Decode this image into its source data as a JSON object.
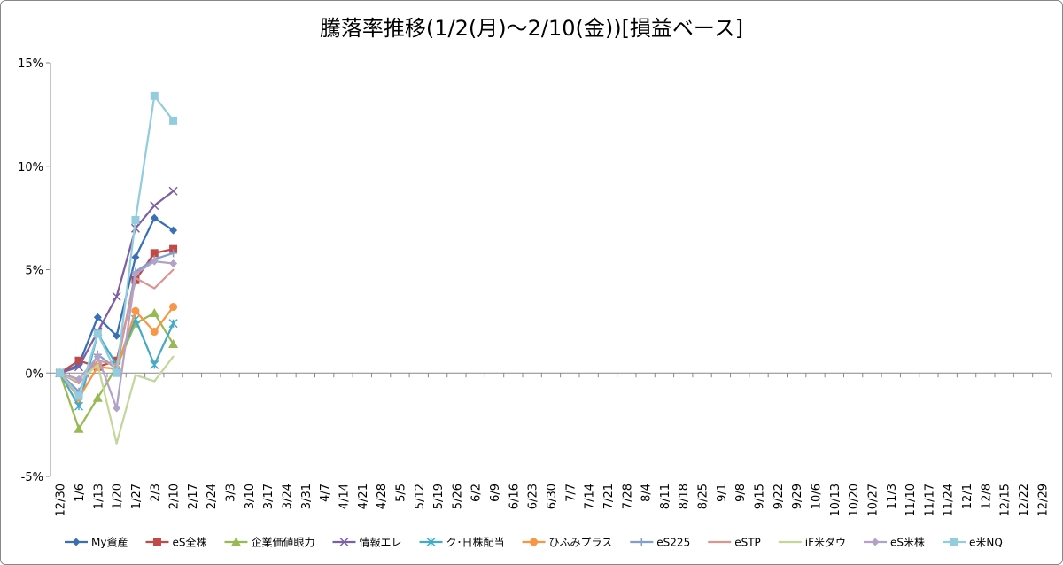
{
  "chart_data": {
    "type": "line",
    "title": "騰落率推移(1/2(月)～2/10(金))[損益ベース]",
    "categories": [
      "12/30",
      "1/6",
      "1/13",
      "1/20",
      "1/27",
      "2/3",
      "2/10",
      "2/17",
      "2/24",
      "3/3",
      "3/10",
      "3/17",
      "3/24",
      "3/31",
      "4/7",
      "4/14",
      "4/21",
      "4/28",
      "5/5",
      "5/12",
      "5/19",
      "5/26",
      "6/2",
      "6/9",
      "6/16",
      "6/23",
      "6/30",
      "7/7",
      "7/14",
      "7/21",
      "7/28",
      "8/4",
      "8/11",
      "8/18",
      "8/25",
      "9/1",
      "9/8",
      "9/15",
      "9/22",
      "9/29",
      "10/6",
      "10/13",
      "10/20",
      "10/27",
      "11/3",
      "11/10",
      "11/17",
      "11/24",
      "12/1",
      "12/8",
      "12/15",
      "12/22",
      "12/29"
    ],
    "ylim": [
      -5,
      15
    ],
    "yticks": [
      {
        "value": -5,
        "label": "-5%"
      },
      {
        "value": 0,
        "label": "0%"
      },
      {
        "value": 5,
        "label": "5%"
      },
      {
        "value": 10,
        "label": "10%"
      },
      {
        "value": 15,
        "label": "15%"
      }
    ],
    "grid": false,
    "legend": "bottom",
    "series": [
      {
        "name": "My資産",
        "color": "#3a6eb5",
        "marker": "diamond",
        "values": [
          0,
          0.4,
          2.7,
          1.8,
          5.6,
          7.5,
          6.9,
          null,
          null,
          null,
          null,
          null,
          null,
          null,
          null,
          null,
          null,
          null,
          null,
          null,
          null,
          null,
          null,
          null,
          null,
          null,
          null,
          null,
          null,
          null,
          null,
          null,
          null,
          null,
          null,
          null,
          null,
          null,
          null,
          null,
          null,
          null,
          null,
          null,
          null,
          null,
          null,
          null,
          null,
          null,
          null,
          null,
          null
        ]
      },
      {
        "name": "eS全株",
        "color": "#be4b48",
        "marker": "square",
        "values": [
          0,
          0.6,
          0.3,
          0.6,
          4.5,
          5.8,
          6.0,
          null,
          null,
          null,
          null,
          null,
          null,
          null,
          null,
          null,
          null,
          null,
          null,
          null,
          null,
          null,
          null,
          null,
          null,
          null,
          null,
          null,
          null,
          null,
          null,
          null,
          null,
          null,
          null,
          null,
          null,
          null,
          null,
          null,
          null,
          null,
          null,
          null,
          null,
          null,
          null,
          null,
          null,
          null,
          null,
          null,
          null
        ]
      },
      {
        "name": "企業価値眼力",
        "color": "#98b954",
        "marker": "triangle",
        "values": [
          0,
          -2.7,
          -1.2,
          0.3,
          2.4,
          2.9,
          1.4,
          null,
          null,
          null,
          null,
          null,
          null,
          null,
          null,
          null,
          null,
          null,
          null,
          null,
          null,
          null,
          null,
          null,
          null,
          null,
          null,
          null,
          null,
          null,
          null,
          null,
          null,
          null,
          null,
          null,
          null,
          null,
          null,
          null,
          null,
          null,
          null,
          null,
          null,
          null,
          null,
          null,
          null,
          null,
          null,
          null,
          null
        ]
      },
      {
        "name": "情報エレ",
        "color": "#7d60a0",
        "marker": "x",
        "values": [
          0,
          0.3,
          2.0,
          3.7,
          7.0,
          8.1,
          8.8,
          null,
          null,
          null,
          null,
          null,
          null,
          null,
          null,
          null,
          null,
          null,
          null,
          null,
          null,
          null,
          null,
          null,
          null,
          null,
          null,
          null,
          null,
          null,
          null,
          null,
          null,
          null,
          null,
          null,
          null,
          null,
          null,
          null,
          null,
          null,
          null,
          null,
          null,
          null,
          null,
          null,
          null,
          null,
          null,
          null,
          null
        ]
      },
      {
        "name": "ク･日株配当",
        "color": "#46aac5",
        "marker": "star",
        "values": [
          0,
          -1.6,
          1.9,
          0.4,
          2.6,
          0.4,
          2.4,
          null,
          null,
          null,
          null,
          null,
          null,
          null,
          null,
          null,
          null,
          null,
          null,
          null,
          null,
          null,
          null,
          null,
          null,
          null,
          null,
          null,
          null,
          null,
          null,
          null,
          null,
          null,
          null,
          null,
          null,
          null,
          null,
          null,
          null,
          null,
          null,
          null,
          null,
          null,
          null,
          null,
          null,
          null,
          null,
          null,
          null
        ]
      },
      {
        "name": "ひふみプラス",
        "color": "#f79646",
        "marker": "circle",
        "values": [
          0,
          -1.2,
          0.3,
          0.2,
          3.0,
          2.0,
          3.2,
          null,
          null,
          null,
          null,
          null,
          null,
          null,
          null,
          null,
          null,
          null,
          null,
          null,
          null,
          null,
          null,
          null,
          null,
          null,
          null,
          null,
          null,
          null,
          null,
          null,
          null,
          null,
          null,
          null,
          null,
          null,
          null,
          null,
          null,
          null,
          null,
          null,
          null,
          null,
          null,
          null,
          null,
          null,
          null,
          null,
          null
        ]
      },
      {
        "name": "eS225",
        "color": "#7f9fcf",
        "marker": "plus",
        "values": [
          0,
          -0.9,
          0.9,
          0.2,
          4.9,
          5.5,
          5.8,
          null,
          null,
          null,
          null,
          null,
          null,
          null,
          null,
          null,
          null,
          null,
          null,
          null,
          null,
          null,
          null,
          null,
          null,
          null,
          null,
          null,
          null,
          null,
          null,
          null,
          null,
          null,
          null,
          null,
          null,
          null,
          null,
          null,
          null,
          null,
          null,
          null,
          null,
          null,
          null,
          null,
          null,
          null,
          null,
          null,
          null
        ]
      },
      {
        "name": "eSTP",
        "color": "#d99694",
        "marker": "none",
        "values": [
          0,
          -0.5,
          0.6,
          0.4,
          4.6,
          4.1,
          5.0,
          null,
          null,
          null,
          null,
          null,
          null,
          null,
          null,
          null,
          null,
          null,
          null,
          null,
          null,
          null,
          null,
          null,
          null,
          null,
          null,
          null,
          null,
          null,
          null,
          null,
          null,
          null,
          null,
          null,
          null,
          null,
          null,
          null,
          null,
          null,
          null,
          null,
          null,
          null,
          null,
          null,
          null,
          null,
          null,
          null,
          null
        ]
      },
      {
        "name": "iF米ダウ",
        "color": "#c3d69b",
        "marker": "none",
        "values": [
          0,
          -0.4,
          0.4,
          -3.4,
          -0.1,
          -0.4,
          0.8,
          null,
          null,
          null,
          null,
          null,
          null,
          null,
          null,
          null,
          null,
          null,
          null,
          null,
          null,
          null,
          null,
          null,
          null,
          null,
          null,
          null,
          null,
          null,
          null,
          null,
          null,
          null,
          null,
          null,
          null,
          null,
          null,
          null,
          null,
          null,
          null,
          null,
          null,
          null,
          null,
          null,
          null,
          null,
          null,
          null,
          null
        ]
      },
      {
        "name": "eS米株",
        "color": "#b3a2c7",
        "marker": "diamond",
        "values": [
          0,
          -0.3,
          0.8,
          -1.7,
          4.8,
          5.4,
          5.3,
          null,
          null,
          null,
          null,
          null,
          null,
          null,
          null,
          null,
          null,
          null,
          null,
          null,
          null,
          null,
          null,
          null,
          null,
          null,
          null,
          null,
          null,
          null,
          null,
          null,
          null,
          null,
          null,
          null,
          null,
          null,
          null,
          null,
          null,
          null,
          null,
          null,
          null,
          null,
          null,
          null,
          null,
          null,
          null,
          null,
          null
        ]
      },
      {
        "name": "e米NQ",
        "color": "#93cddd",
        "marker": "square",
        "values": [
          0,
          -1.1,
          1.9,
          0.0,
          7.4,
          13.4,
          12.2,
          null,
          null,
          null,
          null,
          null,
          null,
          null,
          null,
          null,
          null,
          null,
          null,
          null,
          null,
          null,
          null,
          null,
          null,
          null,
          null,
          null,
          null,
          null,
          null,
          null,
          null,
          null,
          null,
          null,
          null,
          null,
          null,
          null,
          null,
          null,
          null,
          null,
          null,
          null,
          null,
          null,
          null,
          null,
          null,
          null,
          null
        ]
      }
    ]
  }
}
